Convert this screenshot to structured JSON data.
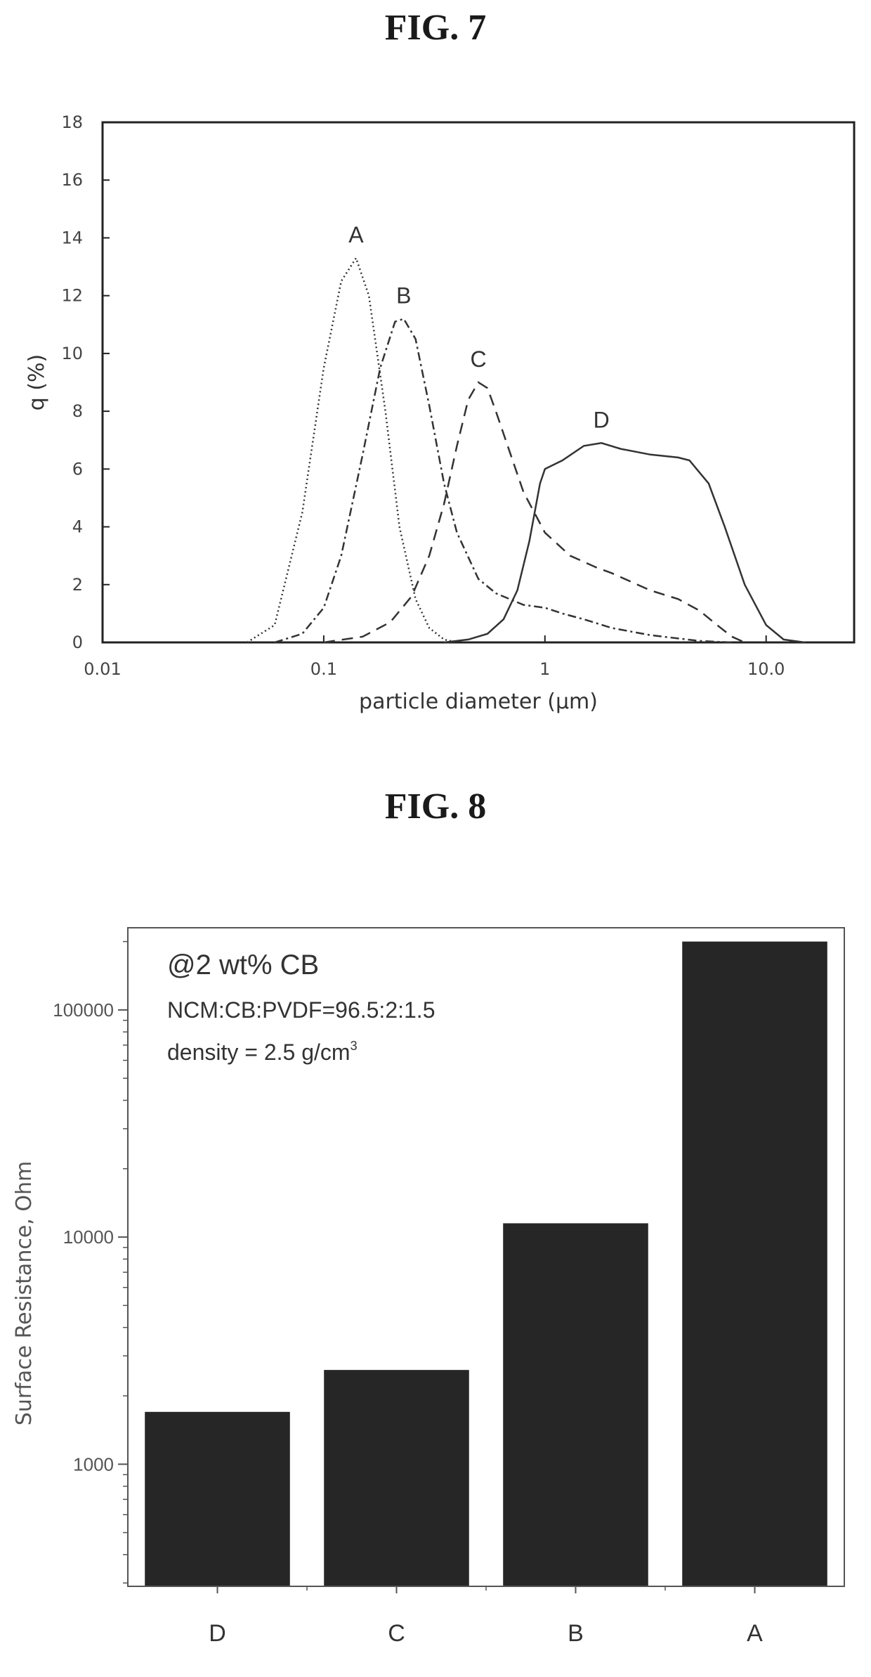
{
  "figures": [
    {
      "title": "FIG. 7"
    },
    {
      "title": "FIG. 8"
    }
  ],
  "chart_data": [
    {
      "type": "line",
      "xlabel": "particle diameter (μm)",
      "ylabel": "q (%)",
      "xscale": "log",
      "xlim": [
        0.01,
        25
      ],
      "ylim": [
        0,
        18
      ],
      "xticks": [
        0.01,
        0.1,
        1,
        10.0
      ],
      "xtick_labels": [
        "0.01",
        "0.1",
        "1",
        "10.0"
      ],
      "yticks": [
        0,
        2,
        4,
        6,
        8,
        10,
        12,
        14,
        16,
        18
      ],
      "ytick_labels": [
        "0",
        "2",
        "4",
        "6",
        "8",
        "10",
        "12",
        "14",
        "16",
        "18"
      ],
      "grid": false,
      "series": [
        {
          "name": "A",
          "style": "dotted",
          "x": [
            0.045,
            0.06,
            0.08,
            0.1,
            0.12,
            0.14,
            0.16,
            0.19,
            0.22,
            0.26,
            0.3,
            0.35,
            0.4
          ],
          "y": [
            0,
            0.6,
            4.5,
            9.5,
            12.5,
            13.3,
            12,
            8,
            4,
            1.5,
            0.5,
            0.1,
            0
          ]
        },
        {
          "name": "B",
          "style": "dash-dot",
          "x": [
            0.06,
            0.08,
            0.1,
            0.12,
            0.15,
            0.18,
            0.21,
            0.23,
            0.26,
            0.3,
            0.35,
            0.4,
            0.5,
            0.6,
            0.8,
            1,
            1.2,
            1.5,
            2,
            3,
            5,
            7
          ],
          "y": [
            0,
            0.3,
            1.2,
            3,
            6.5,
            9.5,
            11.1,
            11.2,
            10.5,
            8.2,
            5.5,
            3.8,
            2.2,
            1.7,
            1.3,
            1.2,
            1,
            0.8,
            0.5,
            0.25,
            0.05,
            0
          ]
        },
        {
          "name": "C",
          "style": "dashed",
          "x": [
            0.1,
            0.15,
            0.2,
            0.25,
            0.3,
            0.35,
            0.4,
            0.45,
            0.5,
            0.55,
            0.6,
            0.7,
            0.8,
            1,
            1.3,
            1.7,
            2,
            3,
            4,
            5,
            6,
            7,
            8
          ],
          "y": [
            0,
            0.2,
            0.7,
            1.6,
            3,
            4.8,
            6.8,
            8.4,
            9,
            8.8,
            8,
            6.5,
            5.2,
            3.8,
            3,
            2.6,
            2.4,
            1.8,
            1.5,
            1.1,
            0.6,
            0.2,
            0
          ]
        },
        {
          "name": "D",
          "style": "solid",
          "x": [
            0.35,
            0.45,
            0.55,
            0.65,
            0.75,
            0.85,
            0.95,
            1,
            1.2,
            1.5,
            1.8,
            2.2,
            3,
            4,
            4.5,
            5.5,
            6.5,
            8,
            10,
            12,
            15
          ],
          "y": [
            0,
            0.1,
            0.3,
            0.8,
            1.8,
            3.5,
            5.5,
            6,
            6.3,
            6.8,
            6.9,
            6.7,
            6.5,
            6.4,
            6.3,
            5.5,
            4,
            2,
            0.6,
            0.1,
            0
          ]
        }
      ]
    },
    {
      "type": "bar",
      "ylabel": "Surface Resistance, Ohm",
      "yscale": "log",
      "ylim": [
        290,
        230000
      ],
      "yticks": [
        1000,
        10000,
        100000
      ],
      "ytick_labels": [
        "1000",
        "10000",
        "100000"
      ],
      "categories": [
        "D",
        "C",
        "B",
        "A"
      ],
      "values": [
        1700,
        2600,
        11500,
        200000
      ],
      "bar_color": "#262626",
      "annotations": {
        "line1": "@2 wt% CB",
        "line2": "NCM:CB:PVDF=96.5:2:1.5",
        "line3_prefix": "density = 2.5 g/cm",
        "line3_sup": "3"
      }
    }
  ]
}
